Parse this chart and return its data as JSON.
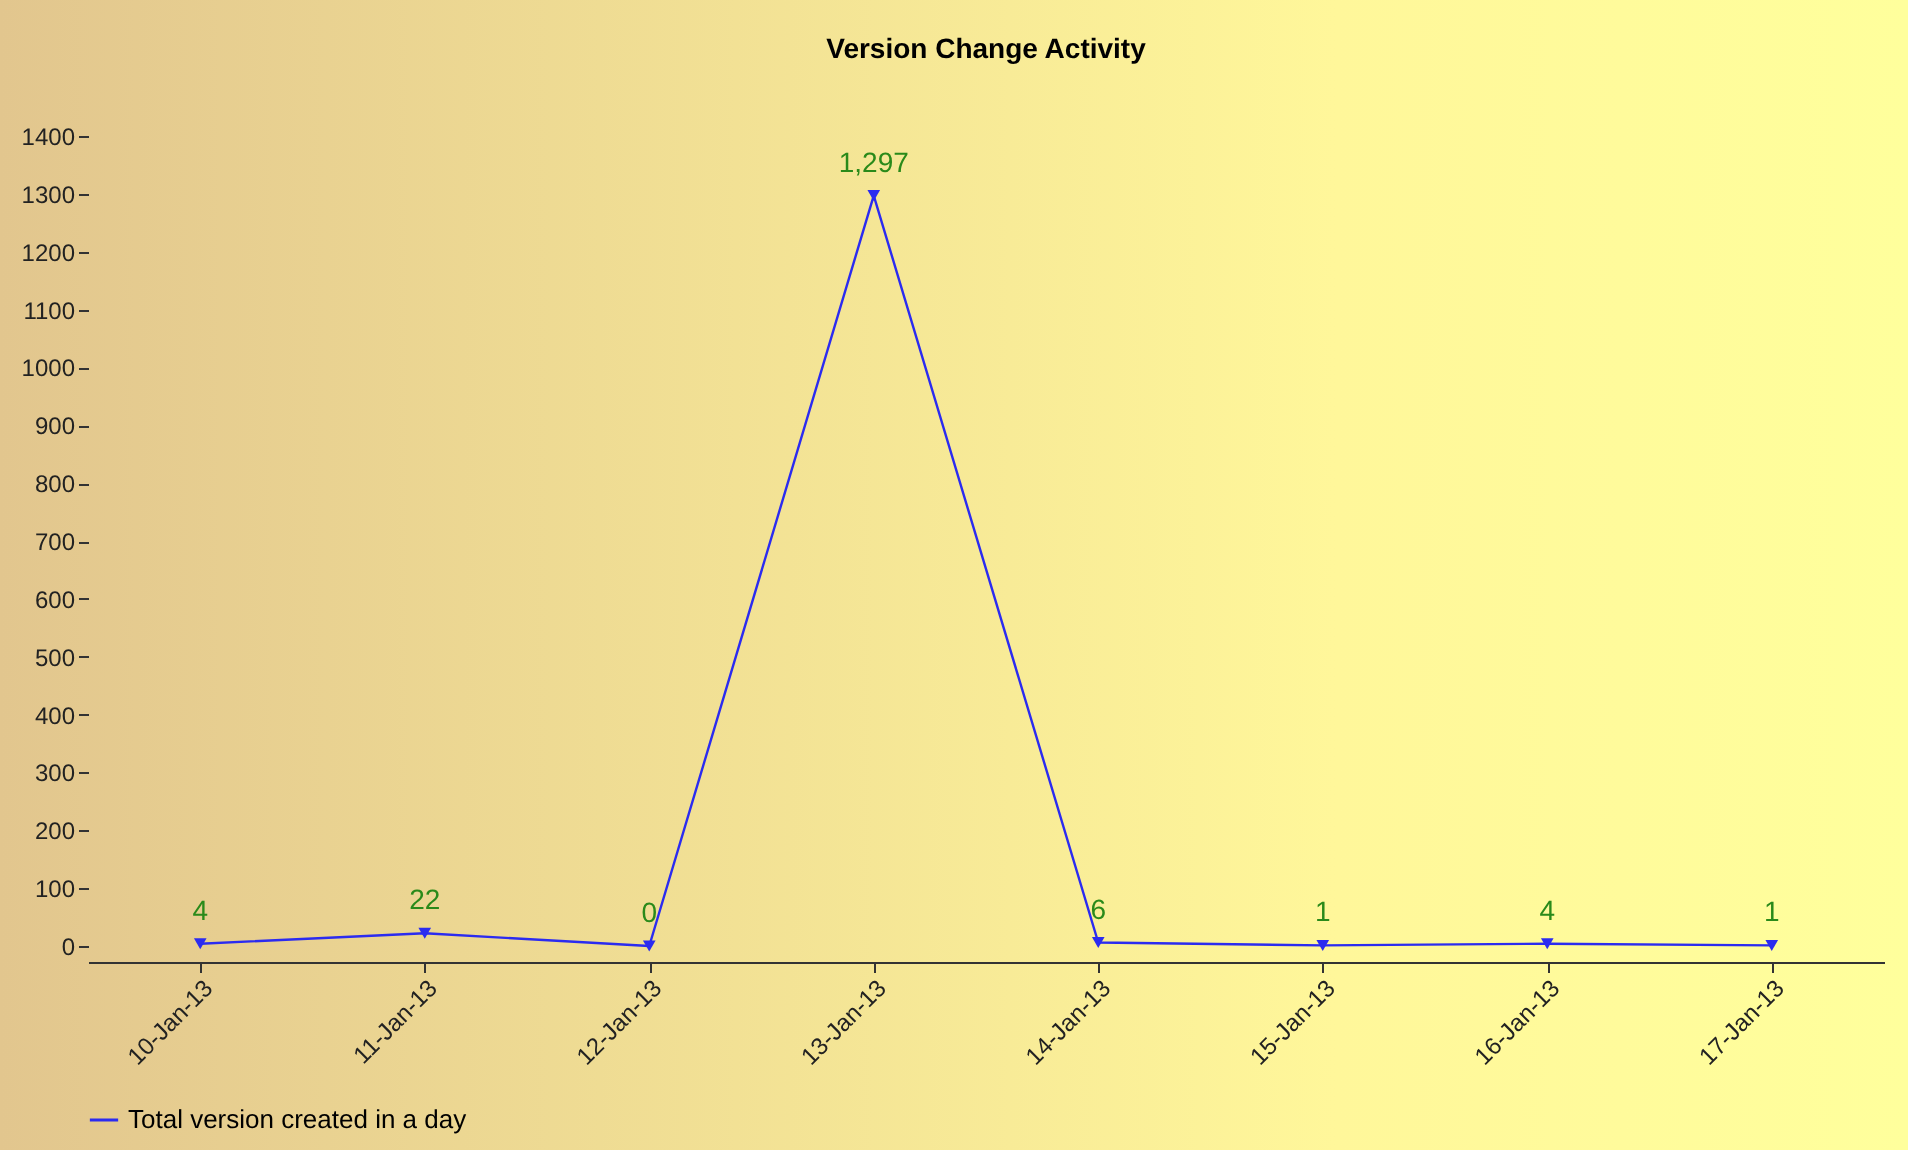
{
  "chart_data": {
    "type": "line",
    "title": "Version Change Activity",
    "categories": [
      "10-Jan-13",
      "11-Jan-13",
      "12-Jan-13",
      "13-Jan-13",
      "14-Jan-13",
      "15-Jan-13",
      "16-Jan-13",
      "17-Jan-13"
    ],
    "series": [
      {
        "name": "Total version created in a day",
        "color": "#2b2bf0",
        "values": [
          4,
          22,
          0,
          1297,
          6,
          1,
          4,
          1
        ],
        "value_labels": [
          "4",
          "22",
          "0",
          "1,297",
          "6",
          "1",
          "4",
          "1"
        ]
      }
    ],
    "ylim": [
      0,
      1400
    ],
    "yticks": [
      0,
      100,
      200,
      300,
      400,
      500,
      600,
      700,
      800,
      900,
      1000,
      1100,
      1200,
      1300,
      1400
    ],
    "grid": false,
    "legend": "bottom left",
    "marker": "triangle",
    "line_style": "solid"
  }
}
